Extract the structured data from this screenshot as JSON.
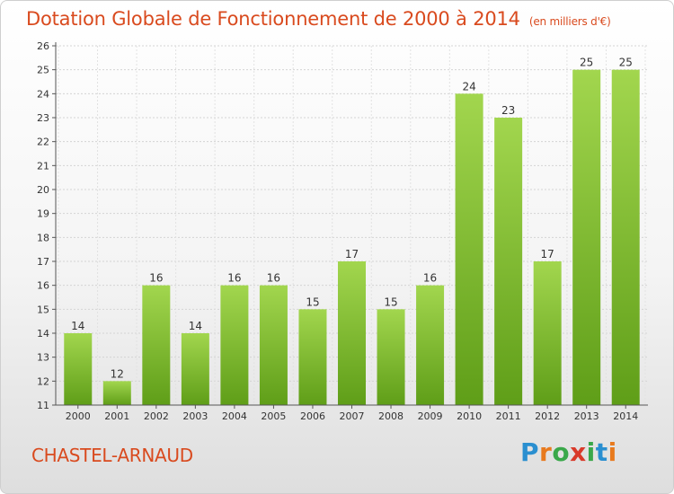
{
  "page": {
    "commune": "CHASTEL-ARNAUD",
    "logo_text": "Proxiti",
    "logo_letters": [
      "P",
      "r",
      "o",
      "x",
      "i",
      "t",
      "i"
    ],
    "logo_colors": [
      "#2a8fd0",
      "#e87a1e",
      "#3aa84a",
      "#d93a2a",
      "#3aa84a",
      "#2a8fd0",
      "#e87a1e"
    ],
    "title_color": "#d94a1e"
  },
  "chart_data": {
    "type": "bar",
    "title": "Dotation Globale de Fonctionnement de 2000 à 2014",
    "subtitle": "(en milliers d'€)",
    "categories": [
      "2000",
      "2001",
      "2002",
      "2003",
      "2004",
      "2005",
      "2006",
      "2007",
      "2008",
      "2009",
      "2010",
      "2011",
      "2012",
      "2013",
      "2014"
    ],
    "values": [
      14,
      12,
      16,
      14,
      16,
      16,
      15,
      17,
      15,
      16,
      24,
      23,
      17,
      25,
      25
    ],
    "data_labels": [
      "14",
      "12",
      "16",
      "14",
      "16",
      "16",
      "15",
      "17",
      "15",
      "16",
      "24",
      "23",
      "17",
      "25",
      "25"
    ],
    "ylim": [
      11,
      26
    ],
    "yticks": [
      "11",
      "12",
      "13",
      "14",
      "15",
      "16",
      "17",
      "18",
      "19",
      "20",
      "21",
      "22",
      "23",
      "24",
      "25",
      "26"
    ],
    "xlabel": "",
    "ylabel": "",
    "grid": true,
    "bar_color": "#7cc02e"
  }
}
